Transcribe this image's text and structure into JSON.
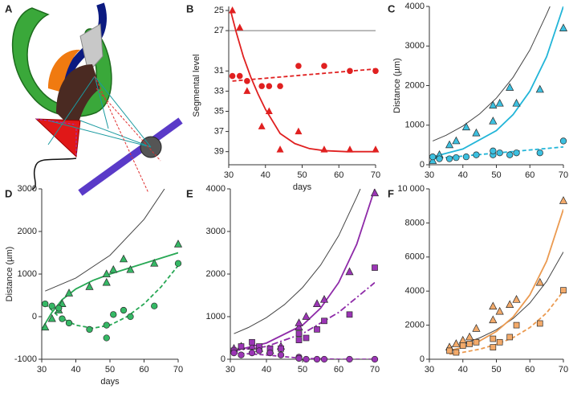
{
  "illustration": {
    "label": "A"
  },
  "chart_data": [
    {
      "type": "scatter",
      "panel": "B",
      "xlabel": "days",
      "ylabel": "Segmental level",
      "xlim": [
        30,
        70
      ],
      "ylim": [
        40.3,
        24.6
      ],
      "xticks": [
        30,
        40,
        50,
        60,
        70
      ],
      "yticks": [
        25,
        27,
        31,
        33,
        35,
        37,
        39
      ],
      "series": [
        {
          "color": "#777777",
          "line": "solid",
          "x": [
            30,
            70
          ],
          "values": [
            27,
            27
          ]
        },
        {
          "color": "#e02020",
          "line": "solid",
          "x": [
            30.5,
            32,
            34,
            36,
            38,
            40,
            44,
            48,
            52,
            56,
            62,
            70
          ],
          "values": [
            25,
            27.1,
            29.6,
            31.6,
            33.3,
            34.8,
            37.2,
            38.2,
            38.7,
            38.9,
            39,
            39
          ]
        },
        {
          "color": "#e02020",
          "line": "dashed",
          "x": [
            31,
            70
          ],
          "values": [
            32,
            30.8
          ]
        },
        {
          "color": "#e02020",
          "marker": "triangle",
          "x": [
            31,
            33,
            35,
            39,
            41,
            44,
            49,
            56,
            63,
            70
          ],
          "values": [
            25,
            26.7,
            33,
            36.5,
            35,
            38.8,
            37,
            38.8,
            38.8,
            38.8
          ]
        },
        {
          "color": "#e02020",
          "marker": "circle",
          "x": [
            31,
            33,
            35,
            39,
            41,
            44,
            49,
            56,
            63,
            70
          ],
          "values": [
            31.5,
            31.5,
            32,
            32.5,
            32.5,
            32.5,
            30.5,
            30.5,
            31,
            31
          ]
        }
      ]
    },
    {
      "type": "scatter",
      "panel": "C",
      "ylabel": "Distance (µm)",
      "xlim": [
        30,
        70
      ],
      "ylim": [
        0,
        4000
      ],
      "xticks": [
        30,
        40,
        50,
        60,
        70
      ],
      "yticks": [
        0,
        1000,
        2000,
        3000,
        4000
      ],
      "series": [
        {
          "color": "#444444",
          "line": "solid",
          "x": [
            31,
            35,
            40,
            45,
            50,
            55,
            60,
            65,
            66
          ],
          "values": [
            600,
            745,
            978,
            1284,
            1684,
            2210,
            2900,
            3806,
            4000
          ]
        },
        {
          "color": "#22b5d8",
          "line": "solid",
          "x": [
            31,
            40,
            50,
            55,
            60,
            65,
            70
          ],
          "values": [
            200,
            398,
            862,
            1268,
            1860,
            2730,
            4000
          ]
        },
        {
          "color": "#22b5d8",
          "line": "dashed",
          "x": [
            31,
            70
          ],
          "values": [
            150,
            450
          ]
        },
        {
          "color": "#3cc0e0",
          "marker": "triangle",
          "x": [
            31,
            33,
            36,
            38,
            41,
            44,
            49,
            49,
            51,
            54,
            56,
            63,
            70
          ],
          "values": [
            100,
            250,
            500,
            600,
            950,
            800,
            1100,
            1500,
            1550,
            1950,
            1550,
            1900,
            3450
          ]
        },
        {
          "color": "#3cc0e0",
          "marker": "circle",
          "x": [
            31,
            33,
            36,
            38,
            41,
            44,
            49,
            49,
            51,
            54,
            56,
            63,
            70
          ],
          "values": [
            200,
            150,
            150,
            180,
            200,
            250,
            250,
            350,
            300,
            250,
            300,
            300,
            600
          ]
        }
      ]
    },
    {
      "type": "scatter",
      "panel": "D",
      "xlabel": "days",
      "ylabel": "Distance (µm)",
      "xlim": [
        30,
        70
      ],
      "ylim": [
        -1000,
        3000
      ],
      "xticks": [
        30,
        40,
        50,
        60,
        70
      ],
      "yticks": [
        -1000,
        0,
        1000,
        2000,
        3000
      ],
      "series": [
        {
          "color": "#444444",
          "line": "solid",
          "x": [
            31,
            40,
            50,
            60,
            66
          ],
          "values": [
            600,
            907,
            1439,
            2284,
            3000
          ]
        },
        {
          "color": "#28a855",
          "line": "solid",
          "x": [
            30,
            33,
            36,
            40,
            45,
            50,
            60,
            70
          ],
          "values": [
            -300,
            100,
            400,
            650,
            850,
            1000,
            1250,
            1500
          ]
        },
        {
          "color": "#28a855",
          "line": "dashed",
          "x": [
            31,
            35,
            40,
            45,
            50,
            55,
            60,
            65,
            70
          ],
          "values": [
            300,
            0,
            -200,
            -270,
            -200,
            0,
            300,
            700,
            1200
          ]
        },
        {
          "color": "#35b865",
          "marker": "triangle",
          "x": [
            31,
            33,
            35,
            36,
            38,
            44,
            49,
            49,
            51,
            54,
            56,
            63,
            70
          ],
          "values": [
            -250,
            -50,
            150,
            300,
            550,
            700,
            800,
            1000,
            1100,
            1350,
            1100,
            1250,
            1700
          ]
        },
        {
          "color": "#35b865",
          "marker": "circle",
          "x": [
            31,
            33,
            35,
            36,
            38,
            44,
            49,
            49,
            51,
            54,
            56,
            63,
            70
          ],
          "values": [
            300,
            250,
            200,
            -50,
            -150,
            -300,
            -200,
            -500,
            50,
            150,
            0,
            250,
            1250
          ]
        }
      ]
    },
    {
      "type": "scatter",
      "panel": "E",
      "xlim": [
        30,
        70
      ],
      "ylim": [
        0,
        4000
      ],
      "xticks": [
        30,
        40,
        50,
        60,
        70
      ],
      "yticks": [
        0,
        1000,
        2000,
        3000,
        4000
      ],
      "series": [
        {
          "color": "#444444",
          "line": "solid",
          "x": [
            31,
            35,
            40,
            45,
            50,
            55,
            60,
            65,
            66
          ],
          "values": [
            600,
            745,
            978,
            1284,
            1684,
            2210,
            2900,
            3806,
            4000
          ]
        },
        {
          "color": "#8e2aa8",
          "line": "solid",
          "x": [
            31,
            40,
            50,
            55,
            60,
            65,
            70
          ],
          "values": [
            200,
            380,
            800,
            1200,
            1800,
            2700,
            4000
          ]
        },
        {
          "color": "#8e2aa8",
          "line": "dashdot",
          "x": [
            31,
            40,
            50,
            60,
            70
          ],
          "values": [
            200,
            300,
            600,
            1100,
            1800
          ]
        },
        {
          "color": "#8e2aa8",
          "line": "dashed",
          "x": [
            31,
            40,
            50,
            60,
            70
          ],
          "values": [
            150,
            100,
            20,
            0,
            0
          ]
        },
        {
          "color": "#9b35b5",
          "marker": "triangle",
          "x": [
            31,
            33,
            36,
            38,
            41,
            44,
            49,
            49,
            51,
            54,
            56,
            63,
            70
          ],
          "values": [
            250,
            300,
            300,
            250,
            200,
            300,
            750,
            850,
            1000,
            1300,
            1400,
            2050,
            3900
          ]
        },
        {
          "color": "#9b35b5",
          "marker": "square",
          "x": [
            31,
            33,
            36,
            38,
            41,
            44,
            49,
            49,
            51,
            54,
            56,
            63,
            70
          ],
          "values": [
            200,
            300,
            400,
            300,
            250,
            250,
            450,
            600,
            500,
            700,
            900,
            1050,
            2150
          ]
        },
        {
          "color": "#9b35b5",
          "marker": "circle",
          "x": [
            31,
            33,
            36,
            38,
            41,
            44,
            49,
            49,
            51,
            54,
            56,
            63,
            70
          ],
          "values": [
            150,
            100,
            150,
            200,
            150,
            100,
            50,
            20,
            0,
            0,
            0,
            0,
            0
          ]
        }
      ]
    },
    {
      "type": "scatter",
      "panel": "F",
      "xlim": [
        30,
        70
      ],
      "ylim": [
        0,
        10000
      ],
      "xticks": [
        30,
        40,
        50,
        60,
        70
      ],
      "yticks": [
        0,
        2000,
        4000,
        6000,
        8000,
        {
          "value": 10000,
          "label": "10 000"
        }
      ],
      "series": [
        {
          "color": "#444444",
          "line": "solid",
          "x": [
            36,
            40,
            45,
            50,
            55,
            60,
            65,
            70
          ],
          "values": [
            700,
            910,
            1250,
            1730,
            2390,
            3300,
            4570,
            6300
          ]
        },
        {
          "color": "#eb9a50",
          "line": "solid",
          "x": [
            36,
            40,
            45,
            50,
            55,
            60,
            65,
            70
          ],
          "values": [
            500,
            700,
            1070,
            1630,
            2480,
            3780,
            5760,
            8800
          ]
        },
        {
          "color": "#eb9a50",
          "line": "dashed",
          "x": [
            36,
            40,
            45,
            50,
            55,
            60,
            65,
            70
          ],
          "values": [
            300,
            405,
            590,
            870,
            1270,
            1860,
            2720,
            4000
          ]
        },
        {
          "color": "#f3aa6a",
          "marker": "triangle",
          "x": [
            36,
            38,
            40,
            42,
            44,
            49,
            49,
            51,
            54,
            56,
            63,
            70
          ],
          "values": [
            700,
            900,
            1100,
            1300,
            1800,
            3100,
            2300,
            2800,
            3200,
            3500,
            4500,
            9300
          ]
        },
        {
          "color": "#f3aa6a",
          "marker": "square",
          "x": [
            36,
            38,
            40,
            42,
            44,
            49,
            49,
            51,
            54,
            56,
            63,
            70
          ],
          "values": [
            500,
            400,
            800,
            900,
            1000,
            700,
            1200,
            1000,
            1300,
            2000,
            2100,
            4050
          ]
        }
      ]
    }
  ]
}
